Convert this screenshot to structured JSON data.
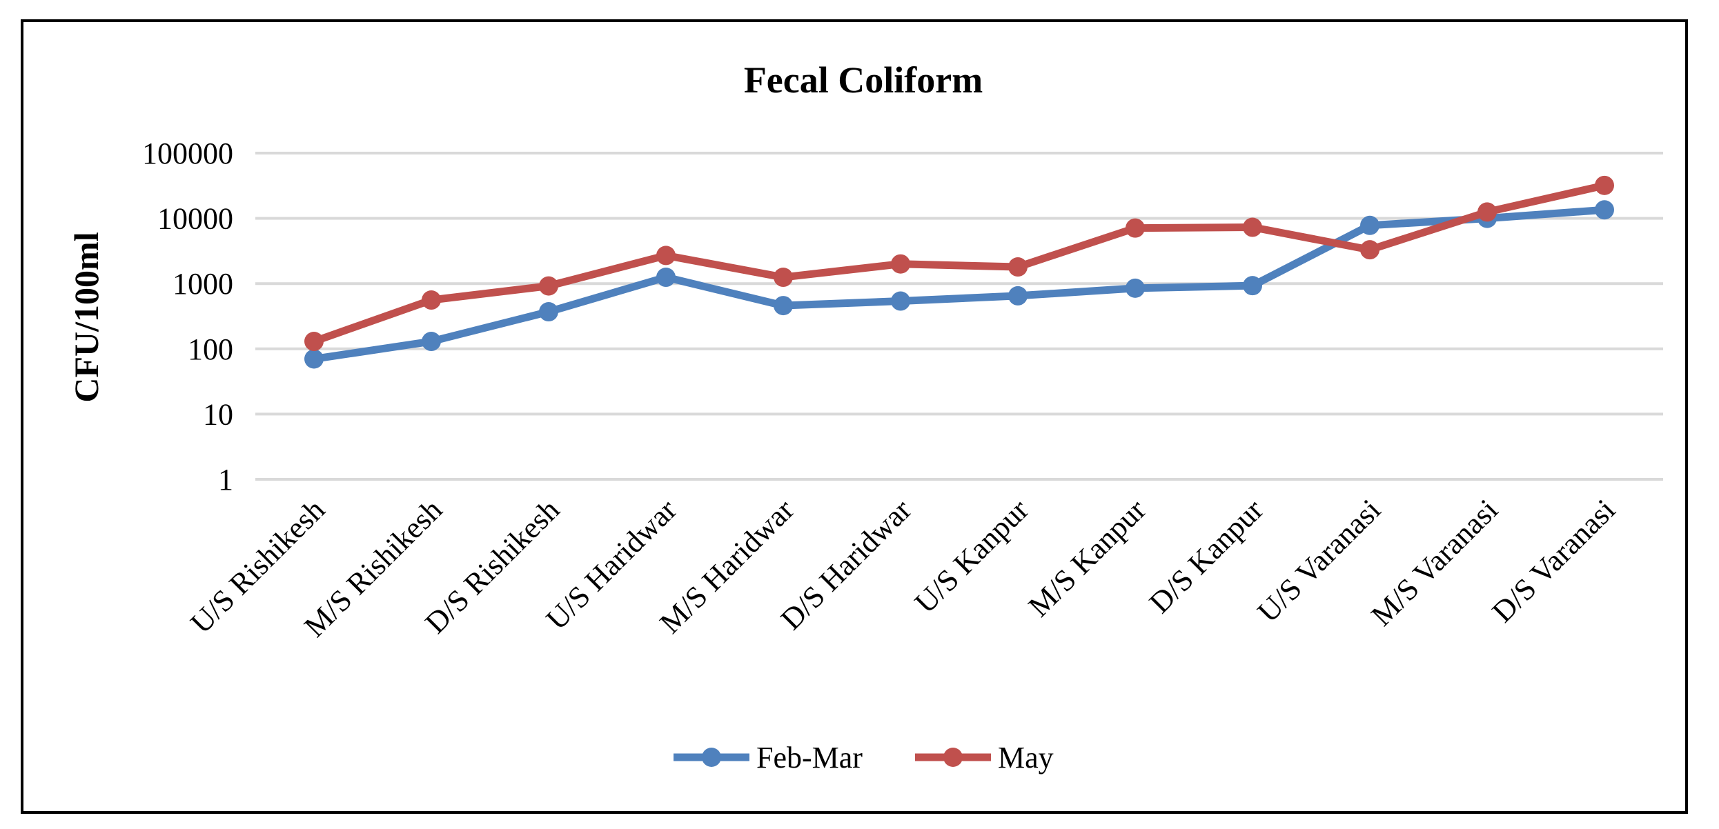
{
  "chart_data": {
    "type": "line",
    "title": "Fecal Coliform",
    "xlabel": "",
    "ylabel": "CFU/100ml",
    "yscale": "log",
    "ylim": [
      1,
      100000
    ],
    "yticks": [
      "1",
      "10",
      "100",
      "1000",
      "10000",
      "100000"
    ],
    "categories": [
      "U/S Rishikesh",
      "M/S Rishikesh",
      "D/S Rishikesh",
      "U/S Haridwar",
      "M/S Haridwar",
      "D/S Haridwar",
      "U/S Kanpur",
      "M/S Kanpur",
      "D/S Kanpur",
      "U/S Varanasi",
      "M/S Varanasi",
      "D/S Varanasi"
    ],
    "series": [
      {
        "name": "Feb-Mar",
        "color": "#4f81bd",
        "values": [
          70,
          130,
          370,
          1250,
          460,
          540,
          650,
          850,
          930,
          7800,
          10000,
          13500
        ]
      },
      {
        "name": "May",
        "color": "#c0504d",
        "values": [
          130,
          560,
          920,
          2700,
          1250,
          2000,
          1800,
          7100,
          7300,
          3300,
          12500,
          32000
        ]
      }
    ],
    "grid": true,
    "legend": "bottom-center"
  }
}
